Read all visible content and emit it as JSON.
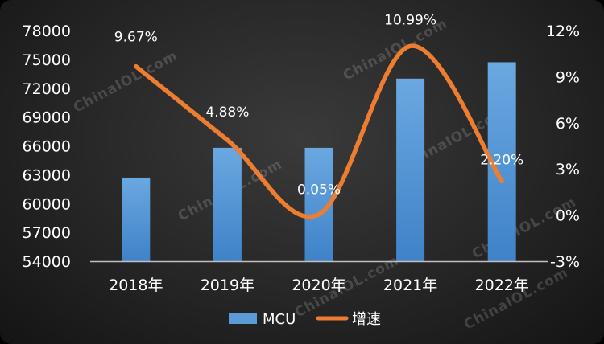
{
  "chart_data": {
    "type": "bar",
    "categories": [
      "2018年",
      "2019年",
      "2020年",
      "2021年",
      "2022年"
    ],
    "series": [
      {
        "name": "MCU",
        "type": "bar",
        "axis": "left",
        "values": [
          62700,
          65800,
          65800,
          73000,
          74700
        ],
        "color": "#5b9bd5"
      },
      {
        "name": "增速",
        "type": "line",
        "axis": "right",
        "values": [
          9.67,
          4.88,
          0.05,
          10.99,
          2.2
        ],
        "labels": [
          "9.67%",
          "4.88%",
          "0.05%",
          "10.99%",
          "2.20%"
        ],
        "color": "#ed7d31"
      }
    ],
    "y_left": {
      "min": 54000,
      "max": 78000,
      "ticks": [
        "54000",
        "57000",
        "60000",
        "63000",
        "66000",
        "69000",
        "72000",
        "75000",
        "78000"
      ]
    },
    "y_right": {
      "min": -3,
      "max": 12,
      "ticks": [
        "-3%",
        "0%",
        "3%",
        "6%",
        "9%",
        "12%"
      ]
    },
    "legend_position": "bottom",
    "grid": false
  },
  "watermark": "ChinaIOL.com"
}
